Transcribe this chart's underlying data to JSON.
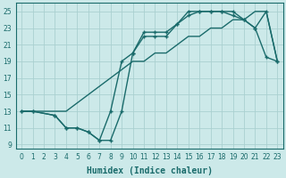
{
  "xlabel": "Humidex (Indice chaleur)",
  "xlim": [
    -0.5,
    23.5
  ],
  "ylim": [
    8.5,
    26.0
  ],
  "xticks": [
    0,
    1,
    2,
    3,
    4,
    5,
    6,
    7,
    8,
    9,
    10,
    11,
    12,
    13,
    14,
    15,
    16,
    17,
    18,
    19,
    20,
    21,
    22,
    23
  ],
  "yticks": [
    9,
    11,
    13,
    15,
    17,
    19,
    21,
    23,
    25
  ],
  "bg_color": "#cce9e9",
  "grid_color": "#aad0d0",
  "line_color": "#1a6b6b",
  "line1_x": [
    0,
    1,
    2,
    3,
    4,
    5,
    6,
    7,
    8,
    9,
    10,
    11,
    12,
    13,
    14,
    15,
    16,
    17,
    18,
    19,
    20,
    21,
    22,
    23
  ],
  "line1_y": [
    13,
    13,
    13,
    13,
    13,
    14,
    15,
    16,
    17,
    18,
    19,
    19,
    20,
    20,
    21,
    22,
    22,
    23,
    23,
    24,
    24,
    25,
    25,
    19
  ],
  "line2_x": [
    0,
    1,
    3,
    4,
    5,
    6,
    7,
    8,
    9,
    10,
    11,
    12,
    13,
    14,
    15,
    16,
    17,
    18,
    19,
    20,
    21,
    22,
    23
  ],
  "line2_y": [
    13,
    13,
    12.5,
    11,
    11,
    10.5,
    9.5,
    13,
    19,
    20,
    22.5,
    22.5,
    22.5,
    23.5,
    25,
    25,
    25,
    25,
    24.5,
    24,
    23,
    19.5,
    19
  ],
  "line3_x": [
    0,
    1,
    3,
    4,
    5,
    6,
    7,
    8,
    9,
    10,
    11,
    12,
    13,
    14,
    15,
    16,
    17,
    18,
    19,
    20,
    21,
    22,
    23
  ],
  "line3_y": [
    13,
    13,
    12.5,
    11,
    11,
    10.5,
    9.5,
    9.5,
    13,
    20,
    22,
    22,
    22,
    23.5,
    24.5,
    25,
    25,
    25,
    25,
    24,
    23,
    25,
    19
  ]
}
